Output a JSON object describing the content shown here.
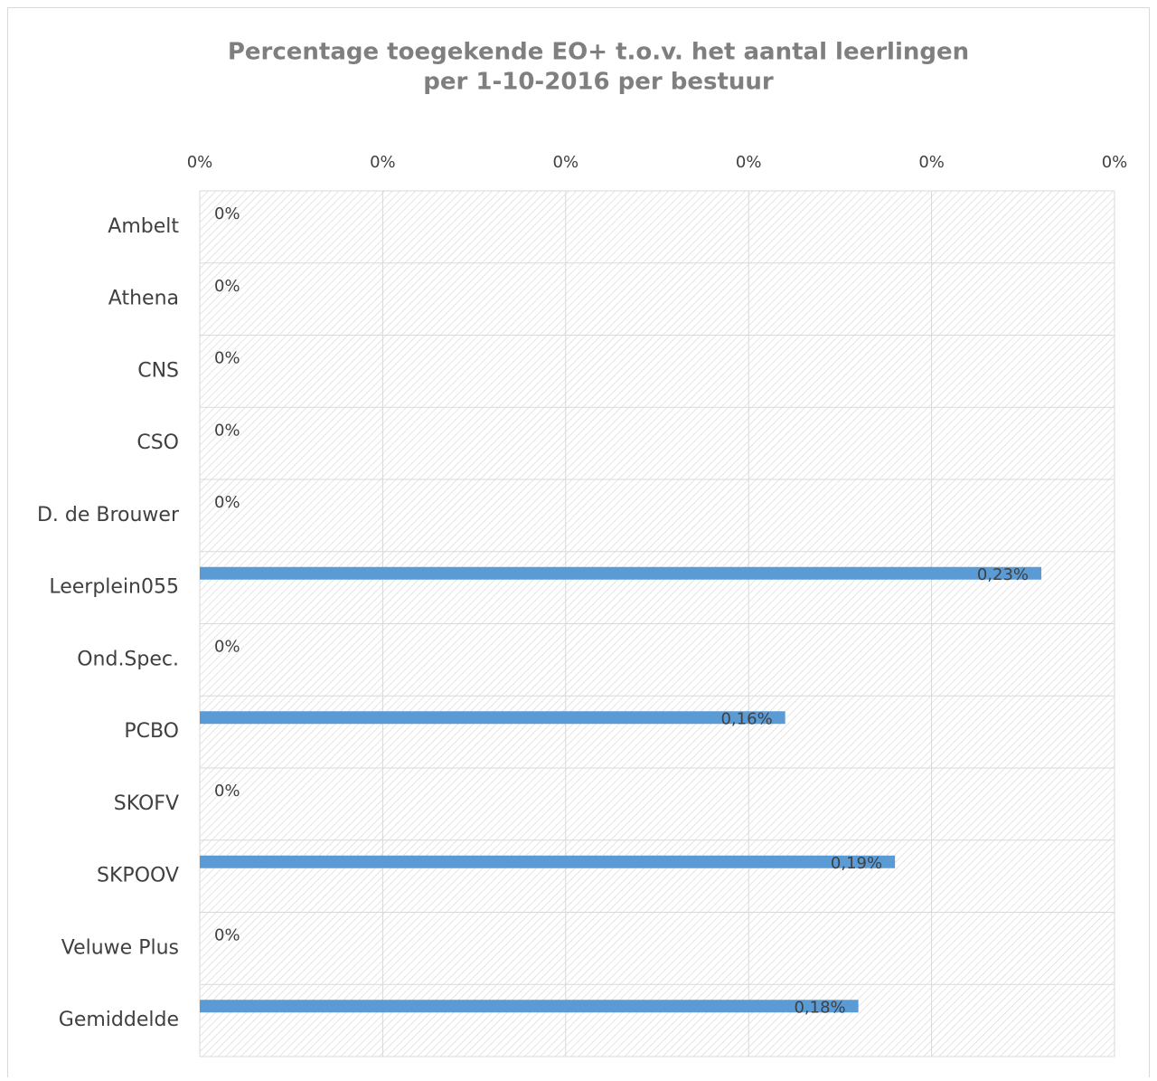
{
  "chart_data": {
    "type": "bar",
    "orientation": "horizontal",
    "title": [
      "Percentage toegekende EO+ t.o.v. het aantal leerlingen",
      "per 1-10-2016 per bestuur"
    ],
    "categories": [
      "Ambelt",
      "Athena",
      "CNS",
      "CSO",
      "D. de Brouwer",
      "Leerplein055",
      "Ond.Spec.",
      "PCBO",
      "SKOFV",
      "SKPOOV",
      "Veluwe Plus",
      "Gemiddelde"
    ],
    "values": [
      0,
      0,
      0,
      0,
      0,
      0.23,
      0,
      0.16,
      0,
      0.19,
      0,
      0.18
    ],
    "value_labels": [
      "0%",
      "0%",
      "0%",
      "0%",
      "0%",
      "0,23%",
      "0%",
      "0,16%",
      "0%",
      "0,19%",
      "0%",
      "0,18%"
    ],
    "color": "#5b9bd5",
    "xlim": [
      0,
      0.25
    ],
    "xticks": [
      {
        "value": 0,
        "label": "0%"
      },
      {
        "value": 0.05,
        "label": "0%"
      },
      {
        "value": 0.1,
        "label": "0%"
      },
      {
        "value": 0.15,
        "label": "0%"
      },
      {
        "value": 0.2,
        "label": "0%"
      },
      {
        "value": 0.25,
        "label": "0%"
      }
    ],
    "grid": true
  }
}
